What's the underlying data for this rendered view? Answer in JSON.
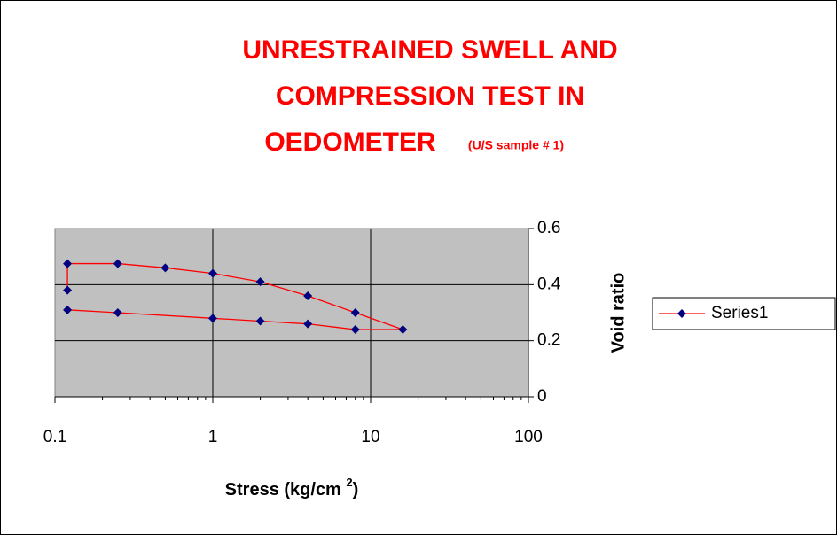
{
  "chart_data": {
    "type": "line",
    "title_lines": [
      "UNRESTRAINED SWELL AND",
      "COMPRESSION TEST IN",
      "OEDOMETER"
    ],
    "subtitle": "(U/S sample # 1)",
    "x_label_parts": [
      "Stress (kg/cm ",
      "2",
      ")"
    ],
    "y_label": "Void ratio",
    "x": [
      0.12,
      0.12,
      0.25,
      0.5,
      1,
      2,
      4,
      8,
      16,
      8,
      4,
      2,
      1,
      0.25,
      0.12
    ],
    "series": [
      {
        "name": "Series1",
        "color": "#ff0000",
        "marker_color": "#000080",
        "values": [
          0.38,
          0.475,
          0.475,
          0.46,
          0.44,
          0.41,
          0.36,
          0.3,
          0.24,
          0.24,
          0.26,
          0.27,
          0.28,
          0.3,
          0.31
        ]
      }
    ],
    "xlim": [
      0.1,
      100
    ],
    "xticks": [
      0.1,
      1,
      10,
      100
    ],
    "xscale": "log",
    "ylim": [
      0,
      0.6
    ],
    "yticks": [
      0,
      0.2,
      0.4,
      0.6
    ],
    "grid": true,
    "legend": "right"
  }
}
